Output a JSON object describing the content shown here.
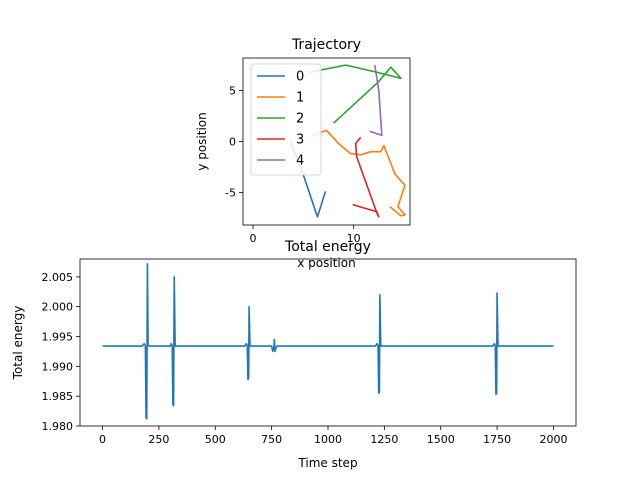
{
  "chart_data": [
    {
      "type": "line",
      "title": "Trajectory",
      "xlabel": "x position",
      "ylabel": "y position",
      "xlim": [
        -1.0,
        15.6
      ],
      "ylim": [
        -8.2,
        8.2
      ],
      "xticks": [
        0,
        10
      ],
      "yticks": [
        -5,
        0,
        5
      ],
      "legend_position": "upper-left",
      "series": [
        {
          "name": "0",
          "color": "#1f77b4",
          "points": [
            [
              3.7,
              0.0
            ],
            [
              4.7,
              -2.4
            ],
            [
              6.4,
              -7.4
            ],
            [
              7.2,
              -4.9
            ]
          ]
        },
        {
          "name": "1",
          "color": "#ff7f0e",
          "points": [
            [
              5.8,
              0.5
            ],
            [
              7.3,
              1.1
            ],
            [
              8.5,
              -0.2
            ],
            [
              9.7,
              -1.2
            ],
            [
              10.7,
              -1.3
            ],
            [
              11.7,
              -1.0
            ],
            [
              12.7,
              -1.0
            ],
            [
              13.0,
              -0.4
            ],
            [
              14.1,
              -3.2
            ],
            [
              15.1,
              -4.3
            ],
            [
              14.4,
              -6.4
            ],
            [
              15.1,
              -7.2
            ],
            [
              14.7,
              -7.3
            ],
            [
              13.6,
              -6.4
            ]
          ]
        },
        {
          "name": "2",
          "color": "#2ca02c",
          "points": [
            [
              5.6,
              6.8
            ],
            [
              9.2,
              7.5
            ],
            [
              12.3,
              6.8
            ],
            [
              14.7,
              6.2
            ],
            [
              13.7,
              7.3
            ],
            [
              12.4,
              5.8
            ],
            [
              8.0,
              1.8
            ]
          ]
        },
        {
          "name": "3",
          "color": "#d62728",
          "points": [
            [
              10.7,
              0.4
            ],
            [
              10.2,
              -0.2
            ],
            [
              10.3,
              -1.5
            ],
            [
              12.3,
              -7.0
            ],
            [
              12.5,
              -7.4
            ],
            [
              12.3,
              -6.9
            ],
            [
              9.9,
              -6.2
            ]
          ]
        },
        {
          "name": "4",
          "color": "#9467bd",
          "points": [
            [
              12.1,
              7.5
            ],
            [
              12.5,
              5.0
            ],
            [
              12.8,
              0.6
            ],
            [
              11.6,
              1.0
            ]
          ]
        }
      ]
    },
    {
      "type": "line",
      "title": "Total energy",
      "xlabel": "Time step",
      "ylabel": "Total energy",
      "xlim": [
        -100,
        2100
      ],
      "ylim": [
        1.98,
        2.008
      ],
      "xticks": [
        0,
        250,
        500,
        750,
        1000,
        1250,
        1500,
        1750,
        2000
      ],
      "yticks": [
        1.98,
        1.985,
        1.99,
        1.995,
        2.0,
        2.005
      ],
      "ytick_labels": [
        "1.980",
        "1.985",
        "1.990",
        "1.995",
        "2.000",
        "2.005"
      ],
      "baseline": 1.9934,
      "series": [
        {
          "name": "",
          "color": "#1f77b4",
          "points": [
            [
              0,
              1.9934
            ],
            [
              175,
              1.9934
            ],
            [
              185,
              1.9938
            ],
            [
              190,
              1.9934
            ],
            [
              193,
              1.9814
            ],
            [
              196,
              1.9812
            ],
            [
              199,
              2.0072
            ],
            [
              202,
              1.9935
            ],
            [
              210,
              1.9934
            ],
            [
              300,
              1.9934
            ],
            [
              305,
              1.9938
            ],
            [
              309,
              1.9934
            ],
            [
              312,
              1.9836
            ],
            [
              315,
              1.9834
            ],
            [
              318,
              2.005
            ],
            [
              322,
              1.9934
            ],
            [
              630,
              1.9934
            ],
            [
              638,
              1.9938
            ],
            [
              642,
              1.9934
            ],
            [
              645,
              1.9878
            ],
            [
              648,
              1.988
            ],
            [
              650,
              2.0
            ],
            [
              654,
              1.9934
            ],
            [
              750,
              1.9934
            ],
            [
              755,
              1.9925
            ],
            [
              760,
              1.9932
            ],
            [
              762,
              1.9945
            ],
            [
              765,
              1.9925
            ],
            [
              770,
              1.9932
            ],
            [
              775,
              1.9934
            ],
            [
              1210,
              1.9934
            ],
            [
              1218,
              1.9938
            ],
            [
              1222,
              1.9934
            ],
            [
              1225,
              1.9855
            ],
            [
              1228,
              1.9857
            ],
            [
              1230,
              2.002
            ],
            [
              1234,
              1.9934
            ],
            [
              1730,
              1.9934
            ],
            [
              1738,
              1.9938
            ],
            [
              1742,
              1.9934
            ],
            [
              1745,
              1.9853
            ],
            [
              1748,
              1.9855
            ],
            [
              1750,
              2.0023
            ],
            [
              1754,
              1.9934
            ],
            [
              2000,
              1.9934
            ]
          ]
        }
      ]
    }
  ]
}
